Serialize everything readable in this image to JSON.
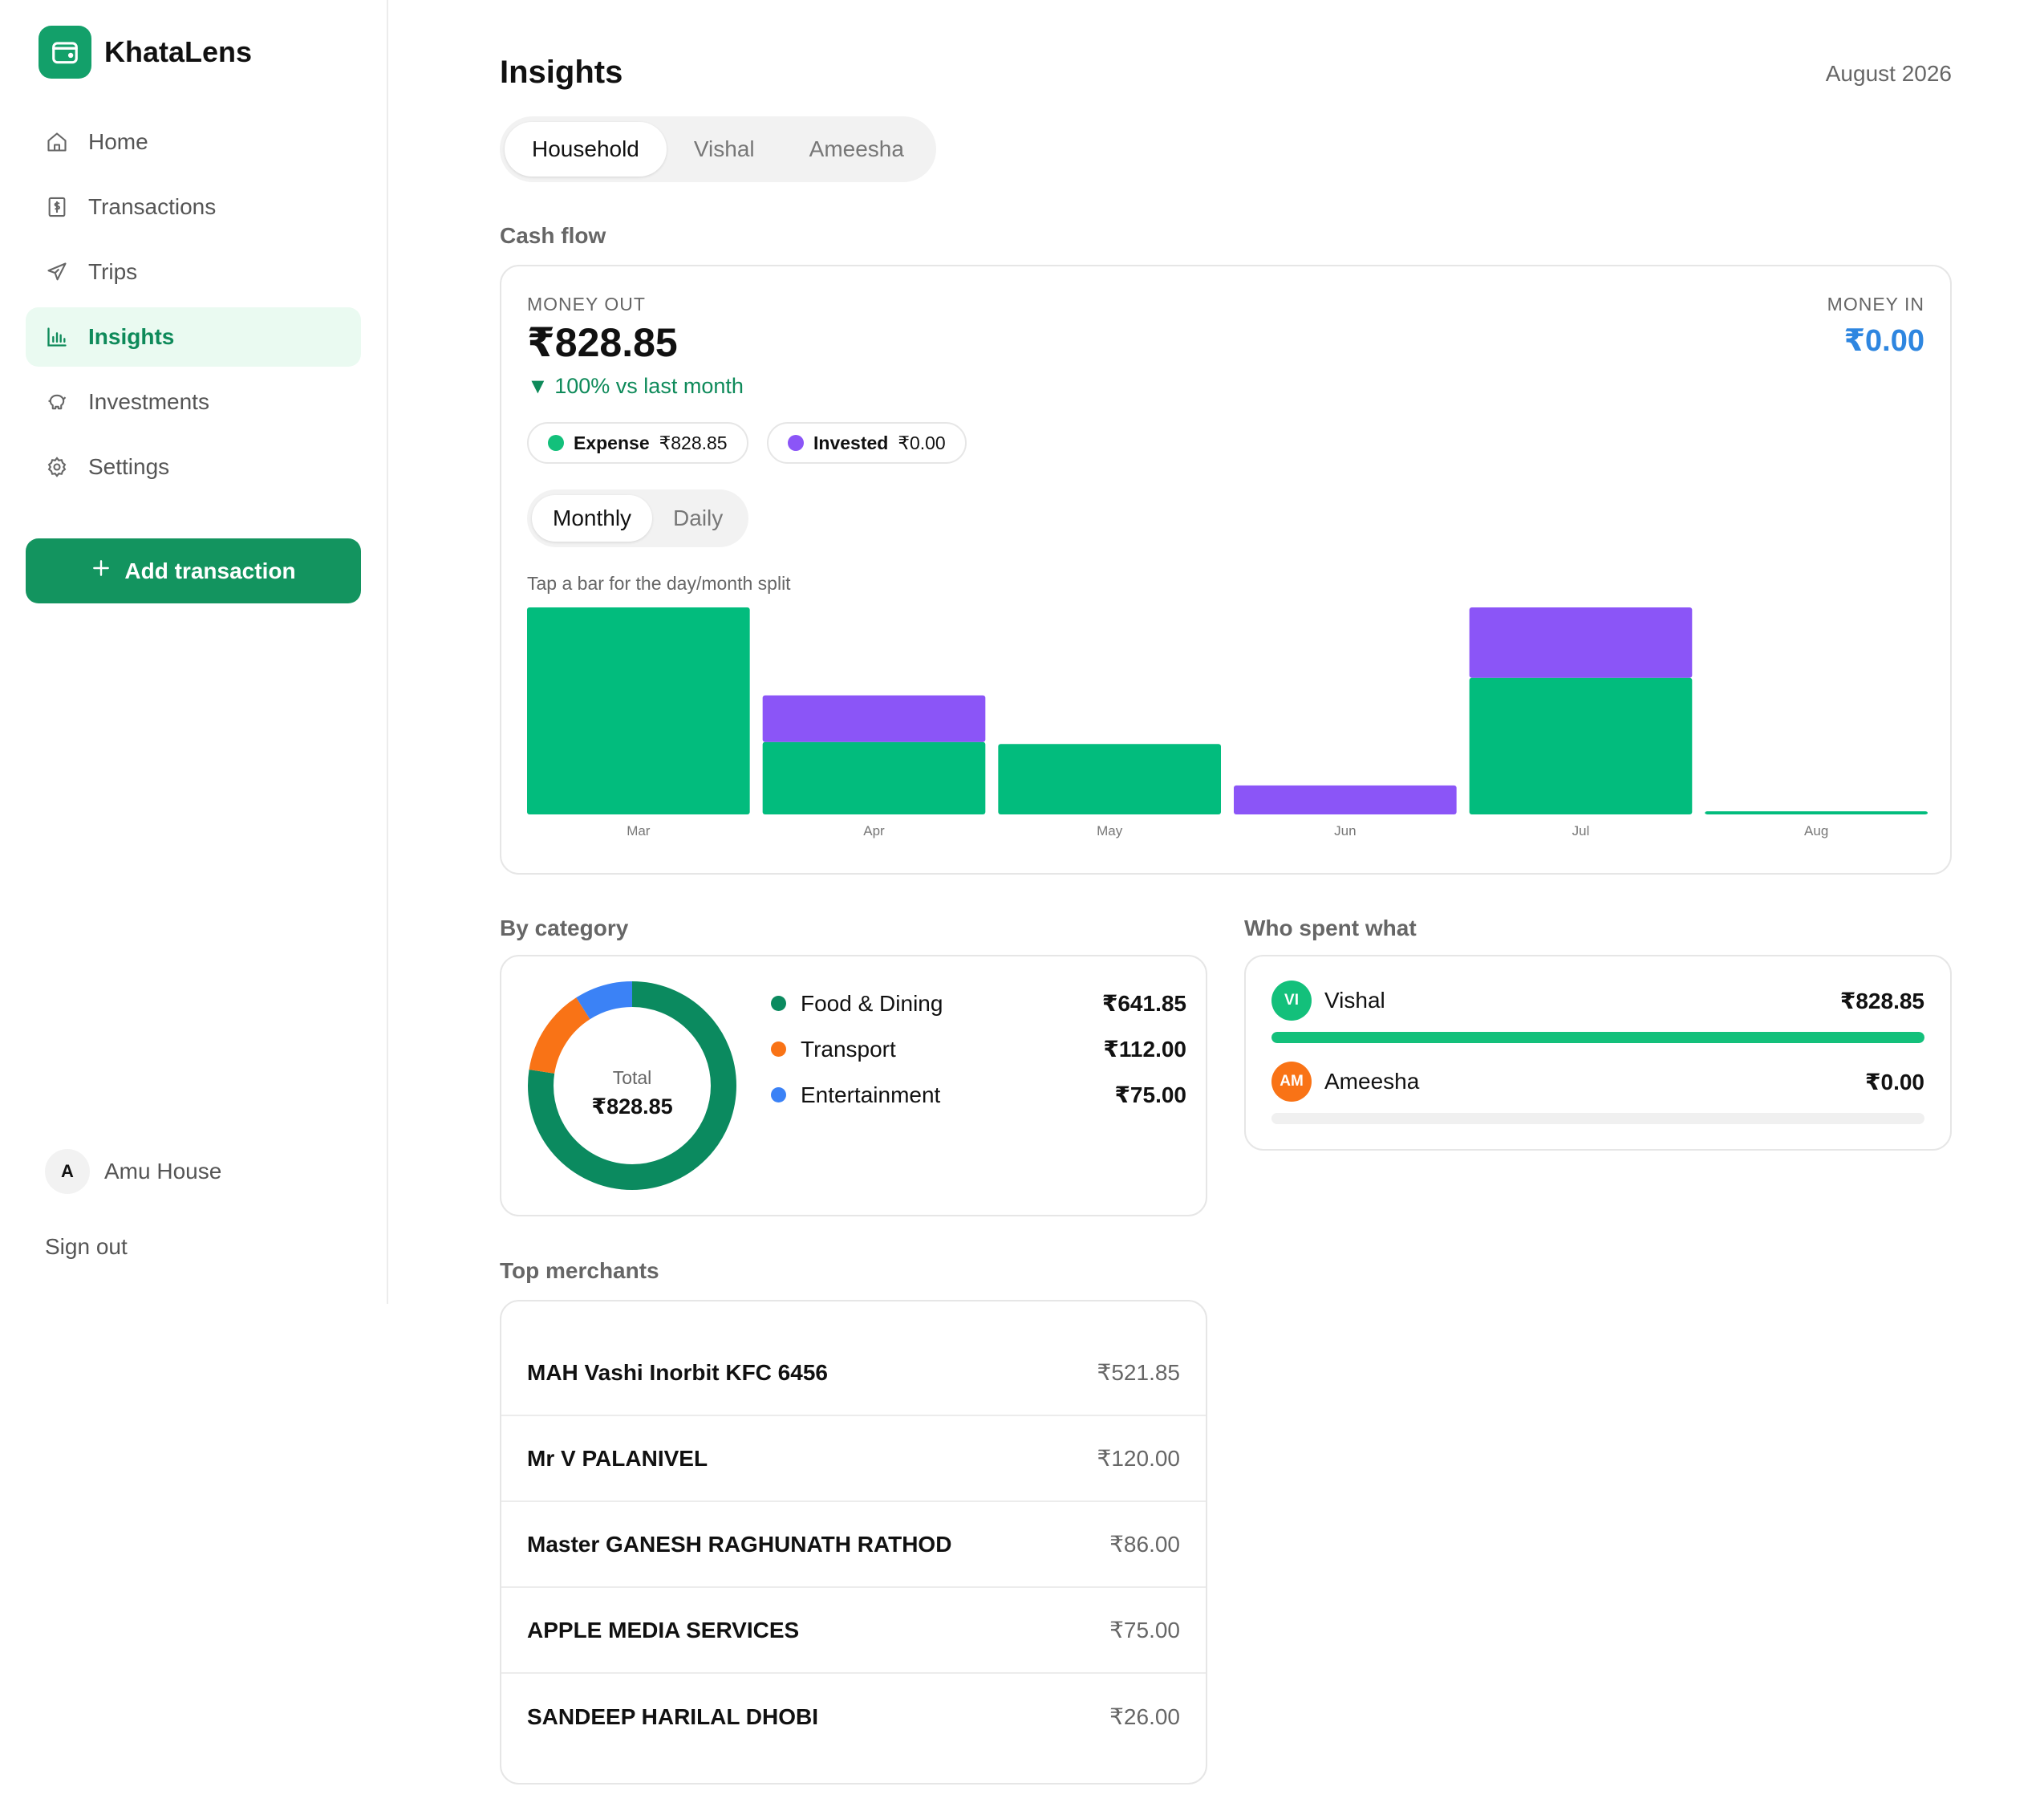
{
  "app": {
    "name": "KhataLens"
  },
  "sidebar": {
    "items": [
      {
        "label": "Home",
        "icon": "home-icon"
      },
      {
        "label": "Transactions",
        "icon": "receipt-icon"
      },
      {
        "label": "Trips",
        "icon": "plane-icon"
      },
      {
        "label": "Insights",
        "icon": "bar-chart-icon",
        "active": true
      },
      {
        "label": "Investments",
        "icon": "piggy-bank-icon"
      },
      {
        "label": "Settings",
        "icon": "gear-icon"
      }
    ],
    "add_button": "Add transaction",
    "user": {
      "initial": "A",
      "name": "Amu House"
    },
    "sign_out": "Sign out"
  },
  "header": {
    "title": "Insights",
    "period": "August 2026"
  },
  "scope_tabs": [
    "Household",
    "Vishal",
    "Ameesha"
  ],
  "scope_selected": "Household",
  "cash_flow": {
    "section_label": "Cash flow",
    "money_out_label": "MONEY OUT",
    "money_out_value": "₹828.85",
    "change": "100% vs last month",
    "change_direction": "down",
    "money_in_label": "MONEY IN",
    "money_in_value": "₹0.00",
    "chips": [
      {
        "name": "Expense",
        "value": "₹828.85",
        "color": "#13c07b"
      },
      {
        "name": "Invested",
        "value": "₹0.00",
        "color": "#8b55f7"
      }
    ],
    "granularity": [
      "Monthly",
      "Daily"
    ],
    "granularity_selected": "Monthly",
    "hint": "Tap a bar for the day/month split"
  },
  "chart_data": {
    "type": "bar",
    "stacked": true,
    "categories": [
      "Mar",
      "Apr",
      "May",
      "Jun",
      "Jul",
      "Aug"
    ],
    "series": [
      {
        "name": "Expense",
        "color": "#02bc7d",
        "values": [
          100,
          35,
          34,
          0,
          66,
          1.5
        ]
      },
      {
        "name": "Invested",
        "color": "#8b55f7",
        "values": [
          0,
          22.5,
          0,
          14,
          34,
          0
        ]
      }
    ],
    "ylim": [
      0,
      100
    ],
    "grid": false,
    "note_values": "relative bar heights, no y-axis printed"
  },
  "by_category": {
    "section_label": "By category",
    "total_label": "Total",
    "total_value": "₹828.85",
    "items": [
      {
        "name": "Food & Dining",
        "value": "₹641.85",
        "amount": 641.85,
        "color": "#0b8a5f"
      },
      {
        "name": "Transport",
        "value": "₹112.00",
        "amount": 112.0,
        "color": "#f97316"
      },
      {
        "name": "Entertainment",
        "value": "₹75.00",
        "amount": 75.0,
        "color": "#3b82f6"
      }
    ]
  },
  "who_spent": {
    "section_label": "Who spent what",
    "people": [
      {
        "initials": "VI",
        "name": "Vishal",
        "value": "₹828.85",
        "share": 1.0,
        "color": "#13c07b"
      },
      {
        "initials": "AM",
        "name": "Ameesha",
        "value": "₹0.00",
        "share": 0.0,
        "color": "#f97316"
      }
    ]
  },
  "top_merchants": {
    "section_label": "Top merchants",
    "rows": [
      {
        "name": "MAH Vashi Inorbit KFC 6456",
        "value": "₹521.85"
      },
      {
        "name": "Mr V PALANIVEL",
        "value": "₹120.00"
      },
      {
        "name": "Master GANESH RAGHUNATH RATHOD",
        "value": "₹86.00"
      },
      {
        "name": "APPLE MEDIA SERVICES",
        "value": "₹75.00"
      },
      {
        "name": "SANDEEP HARILAL DHOBI",
        "value": "₹26.00"
      }
    ]
  }
}
